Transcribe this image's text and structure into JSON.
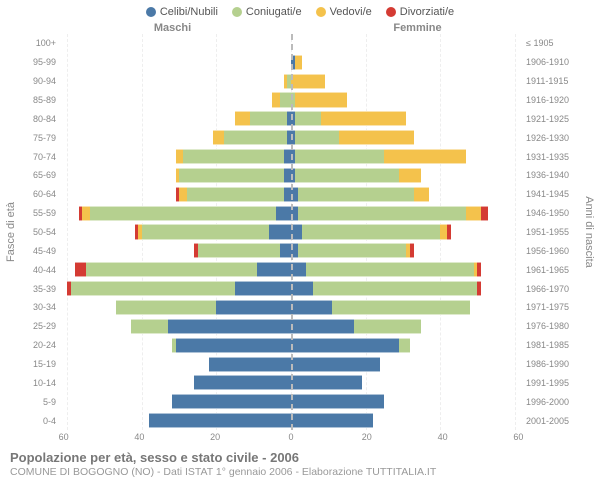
{
  "legend": {
    "celibi": {
      "label": "Celibi/Nubili",
      "color": "#4b79a7"
    },
    "coniugati": {
      "label": "Coniugati/e",
      "color": "#b5d08f"
    },
    "vedovi": {
      "label": "Vedovi/e",
      "color": "#f4c24c"
    },
    "divorziati": {
      "label": "Divorziati/e",
      "color": "#d43b33"
    }
  },
  "gender_left": "Maschi",
  "gender_right": "Femmine",
  "axis_left_title": "Fasce di età",
  "axis_right_title": "Anni di nascita",
  "footer_title": "Popolazione per età, sesso e stato civile - 2006",
  "footer_sub": "COMUNE DI BOGOGNO (NO) - Dati ISTAT 1° gennaio 2006 - Elaborazione TUTTITALIA.IT",
  "style": {
    "bg": "#ffffff",
    "grid_color": "#eeeeee",
    "center_color": "#bbbbbb",
    "text_color": "#888888",
    "row_label_fontsize": 9,
    "axis_title_fontsize": 11,
    "legend_fontsize": 11,
    "footer_title_fontsize": 13,
    "footer_sub_fontsize": 10.5
  },
  "xaxis": {
    "max": 62,
    "ticks": [
      60,
      40,
      20,
      0,
      20,
      40,
      60
    ]
  },
  "rows": [
    {
      "age": "100+",
      "birth": "≤ 1905",
      "m": {
        "c": 0,
        "co": 0,
        "v": 0,
        "d": 0
      },
      "f": {
        "c": 0,
        "co": 0,
        "v": 0,
        "d": 0
      }
    },
    {
      "age": "95-99",
      "birth": "1906-1910",
      "m": {
        "c": 0,
        "co": 0,
        "v": 0,
        "d": 0
      },
      "f": {
        "c": 1,
        "co": 0,
        "v": 2,
        "d": 0
      }
    },
    {
      "age": "90-94",
      "birth": "1911-1915",
      "m": {
        "c": 0,
        "co": 1,
        "v": 1,
        "d": 0
      },
      "f": {
        "c": 0,
        "co": 0,
        "v": 9,
        "d": 0
      }
    },
    {
      "age": "85-89",
      "birth": "1916-1920",
      "m": {
        "c": 0,
        "co": 3,
        "v": 2,
        "d": 0
      },
      "f": {
        "c": 0,
        "co": 1,
        "v": 14,
        "d": 0
      }
    },
    {
      "age": "80-84",
      "birth": "1921-1925",
      "m": {
        "c": 1,
        "co": 10,
        "v": 4,
        "d": 0
      },
      "f": {
        "c": 1,
        "co": 7,
        "v": 23,
        "d": 0
      }
    },
    {
      "age": "75-79",
      "birth": "1926-1930",
      "m": {
        "c": 1,
        "co": 17,
        "v": 3,
        "d": 0
      },
      "f": {
        "c": 1,
        "co": 12,
        "v": 20,
        "d": 0
      }
    },
    {
      "age": "70-74",
      "birth": "1931-1935",
      "m": {
        "c": 2,
        "co": 27,
        "v": 2,
        "d": 0
      },
      "f": {
        "c": 1,
        "co": 24,
        "v": 22,
        "d": 0
      }
    },
    {
      "age": "65-69",
      "birth": "1936-1940",
      "m": {
        "c": 2,
        "co": 28,
        "v": 1,
        "d": 0
      },
      "f": {
        "c": 1,
        "co": 28,
        "v": 6,
        "d": 0
      }
    },
    {
      "age": "60-64",
      "birth": "1941-1945",
      "m": {
        "c": 2,
        "co": 26,
        "v": 2,
        "d": 1
      },
      "f": {
        "c": 2,
        "co": 31,
        "v": 4,
        "d": 0
      }
    },
    {
      "age": "55-59",
      "birth": "1946-1950",
      "m": {
        "c": 4,
        "co": 50,
        "v": 2,
        "d": 1
      },
      "f": {
        "c": 2,
        "co": 45,
        "v": 4,
        "d": 2
      }
    },
    {
      "age": "50-54",
      "birth": "1951-1955",
      "m": {
        "c": 6,
        "co": 34,
        "v": 1,
        "d": 1
      },
      "f": {
        "c": 3,
        "co": 37,
        "v": 2,
        "d": 1
      }
    },
    {
      "age": "45-49",
      "birth": "1956-1960",
      "m": {
        "c": 3,
        "co": 22,
        "v": 0,
        "d": 1
      },
      "f": {
        "c": 2,
        "co": 29,
        "v": 1,
        "d": 1
      }
    },
    {
      "age": "40-44",
      "birth": "1961-1965",
      "m": {
        "c": 9,
        "co": 46,
        "v": 0,
        "d": 3
      },
      "f": {
        "c": 4,
        "co": 45,
        "v": 1,
        "d": 1
      }
    },
    {
      "age": "35-39",
      "birth": "1966-1970",
      "m": {
        "c": 15,
        "co": 44,
        "v": 0,
        "d": 1
      },
      "f": {
        "c": 6,
        "co": 44,
        "v": 0,
        "d": 1
      }
    },
    {
      "age": "30-34",
      "birth": "1971-1975",
      "m": {
        "c": 20,
        "co": 27,
        "v": 0,
        "d": 0
      },
      "f": {
        "c": 11,
        "co": 37,
        "v": 0,
        "d": 0
      }
    },
    {
      "age": "25-29",
      "birth": "1976-1980",
      "m": {
        "c": 33,
        "co": 10,
        "v": 0,
        "d": 0
      },
      "f": {
        "c": 17,
        "co": 18,
        "v": 0,
        "d": 0
      }
    },
    {
      "age": "20-24",
      "birth": "1981-1985",
      "m": {
        "c": 31,
        "co": 1,
        "v": 0,
        "d": 0
      },
      "f": {
        "c": 29,
        "co": 3,
        "v": 0,
        "d": 0
      }
    },
    {
      "age": "15-19",
      "birth": "1986-1990",
      "m": {
        "c": 22,
        "co": 0,
        "v": 0,
        "d": 0
      },
      "f": {
        "c": 24,
        "co": 0,
        "v": 0,
        "d": 0
      }
    },
    {
      "age": "10-14",
      "birth": "1991-1995",
      "m": {
        "c": 26,
        "co": 0,
        "v": 0,
        "d": 0
      },
      "f": {
        "c": 19,
        "co": 0,
        "v": 0,
        "d": 0
      }
    },
    {
      "age": "5-9",
      "birth": "1996-2000",
      "m": {
        "c": 32,
        "co": 0,
        "v": 0,
        "d": 0
      },
      "f": {
        "c": 25,
        "co": 0,
        "v": 0,
        "d": 0
      }
    },
    {
      "age": "0-4",
      "birth": "2001-2005",
      "m": {
        "c": 38,
        "co": 0,
        "v": 0,
        "d": 0
      },
      "f": {
        "c": 22,
        "co": 0,
        "v": 0,
        "d": 0
      }
    }
  ]
}
